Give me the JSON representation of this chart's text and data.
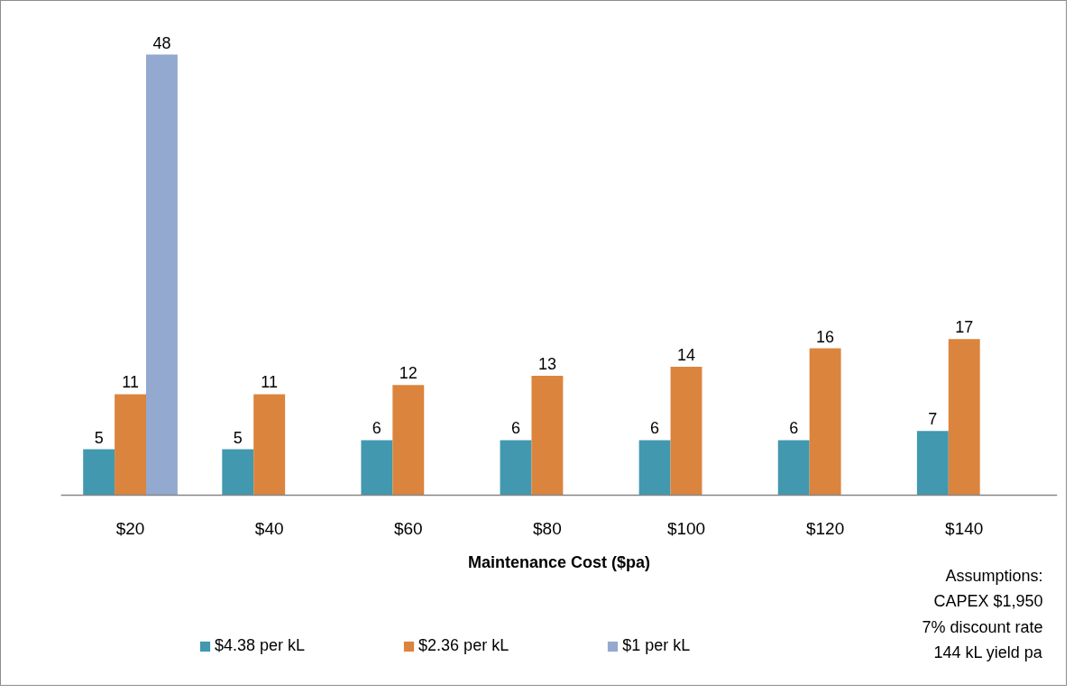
{
  "chart_data": {
    "type": "bar",
    "xlabel": "Maintenance Cost ($pa)",
    "categories": [
      "$20",
      "$40",
      "$60",
      "$80",
      "$100",
      "$120",
      "$140"
    ],
    "series": [
      {
        "name": "$4.38 per kL",
        "color": "#4198af",
        "values": [
          5,
          5,
          6,
          6,
          6,
          6,
          7
        ]
      },
      {
        "name": "$2.36 per kL",
        "color": "#db843d",
        "values": [
          11,
          11,
          12,
          13,
          14,
          16,
          17
        ]
      },
      {
        "name": "$1 per kL",
        "color": "#93a9cf",
        "values": [
          48,
          null,
          null,
          null,
          null,
          null,
          null
        ]
      }
    ],
    "data_labels": true,
    "legend": "bottom",
    "annotations": [
      "Assumptions:",
      "CAPEX $1,950",
      "7% discount rate",
      "144 kL yield pa"
    ]
  }
}
